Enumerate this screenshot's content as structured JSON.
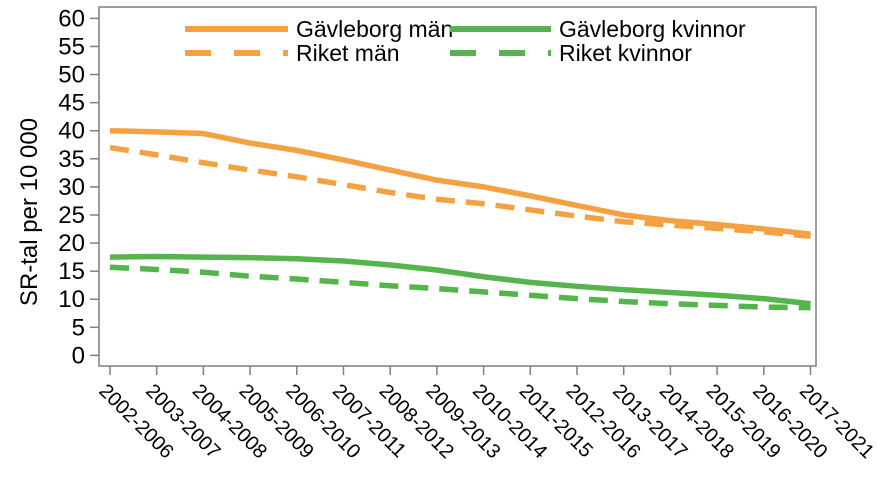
{
  "page": {
    "background": "#ffffff"
  },
  "chart_data": {
    "type": "line",
    "title": "",
    "xlabel": "",
    "ylabel": "SR-tal per 10 000",
    "ylim": [
      0,
      60
    ],
    "yticks": [
      0,
      5,
      10,
      15,
      20,
      25,
      30,
      35,
      40,
      45,
      50,
      55,
      60
    ],
    "grid": false,
    "legend_position": "top-inside",
    "axis_color": "#7f7f7f",
    "text_color": "#000000",
    "categories": [
      "2002-2006",
      "2003-2007",
      "2004-2008",
      "2005-2009",
      "2006-2010",
      "2007-2011",
      "2008-2012",
      "2009-2013",
      "2010-2014",
      "2011-2015",
      "2012-2016",
      "2013-2017",
      "2014-2018",
      "2015-2019",
      "2016-2020",
      "2017-2021"
    ],
    "series": [
      {
        "name": "Gävleborg män",
        "color": "#F4A142",
        "style": "solid",
        "values": [
          40.0,
          39.8,
          39.5,
          37.8,
          36.5,
          34.8,
          33.0,
          31.2,
          30.0,
          28.4,
          26.7,
          25.0,
          24.0,
          23.3,
          22.5,
          21.6
        ]
      },
      {
        "name": "Riket män",
        "color": "#F4A142",
        "style": "dashed",
        "values": [
          37.0,
          35.7,
          34.3,
          33.0,
          31.8,
          30.4,
          29.0,
          27.8,
          27.0,
          25.9,
          24.8,
          23.8,
          23.2,
          22.6,
          22.0,
          21.2
        ]
      },
      {
        "name": "Gävleborg kvinnor",
        "color": "#55B44B",
        "style": "solid",
        "values": [
          17.5,
          17.6,
          17.5,
          17.4,
          17.2,
          16.8,
          16.1,
          15.2,
          14.0,
          13.0,
          12.3,
          11.7,
          11.2,
          10.7,
          10.1,
          9.2
        ]
      },
      {
        "name": "Riket kvinnor",
        "color": "#55B44B",
        "style": "dashed",
        "values": [
          15.7,
          15.3,
          14.8,
          14.1,
          13.6,
          13.0,
          12.4,
          11.9,
          11.3,
          10.7,
          10.1,
          9.6,
          9.2,
          8.9,
          8.6,
          8.5
        ]
      }
    ]
  }
}
